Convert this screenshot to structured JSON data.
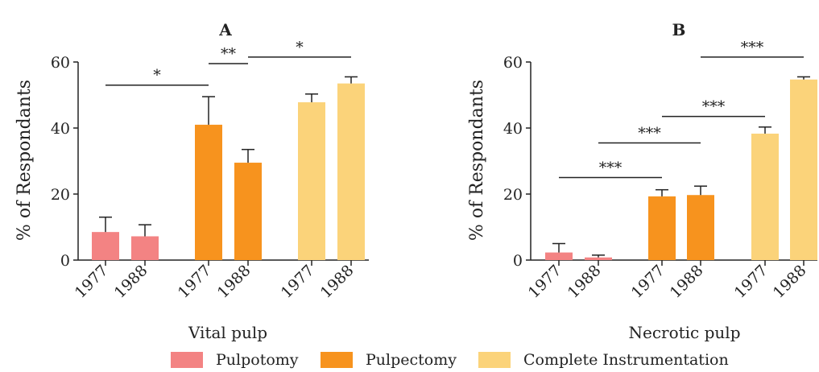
{
  "y_axis_label": "% of Respondants",
  "colors": {
    "Pulpotomy": "#f38383",
    "Pulpectomy": "#f7931e",
    "Complete Instrumentation": "#fbd37a",
    "axis": "#222222"
  },
  "legend": [
    {
      "name": "Pulpotomy",
      "color": "#f38383"
    },
    {
      "name": "Pulpectomy",
      "color": "#f7931e"
    },
    {
      "name": "Complete Instrumentation",
      "color": "#fbd37a"
    }
  ],
  "chart_data": [
    {
      "type": "bar",
      "title": "A",
      "xlabel": "Vital pulp",
      "ylabel": "% of Respondants",
      "ylim": [
        0,
        60
      ],
      "yticks": [
        0,
        20,
        40,
        60
      ],
      "categories": [
        "1977",
        "1988",
        "1977",
        "1988",
        "1977",
        "1988"
      ],
      "groups": [
        "Pulpotomy",
        "Pulpotomy",
        "Pulpectomy",
        "Pulpectomy",
        "Complete Instrumentation",
        "Complete Instrumentation"
      ],
      "values": [
        8.5,
        7.2,
        41,
        29.5,
        47.8,
        53.5
      ],
      "errors": [
        4.5,
        3.5,
        8.5,
        4.0,
        2.5,
        2.0
      ],
      "annotations": [
        {
          "from": 0,
          "to": 2,
          "y": 53,
          "label": "*"
        },
        {
          "from": 2,
          "to": 3,
          "y": 59.5,
          "label": "**"
        },
        {
          "from": 3,
          "to": 5,
          "y": 61.5,
          "label": "*"
        }
      ]
    },
    {
      "type": "bar",
      "title": "B",
      "xlabel": "Necrotic pulp",
      "ylabel": "% of Respondants",
      "ylim": [
        0,
        60
      ],
      "yticks": [
        0,
        20,
        40,
        60
      ],
      "categories": [
        "1977",
        "1988",
        "1977",
        "1988",
        "1977",
        "1988"
      ],
      "groups": [
        "Pulpotomy",
        "Pulpotomy",
        "Pulpectomy",
        "Pulpectomy",
        "Complete Instrumentation",
        "Complete Instrumentation"
      ],
      "values": [
        2.3,
        0.8,
        19.3,
        19.7,
        38.3,
        54.7
      ],
      "errors": [
        2.7,
        0.7,
        2.0,
        2.7,
        2.0,
        0.8
      ],
      "annotations": [
        {
          "from": 0,
          "to": 2,
          "y": 25,
          "label": "***"
        },
        {
          "from": 1,
          "to": 3,
          "y": 35.5,
          "label": "***"
        },
        {
          "from": 2,
          "to": 4,
          "y": 43.5,
          "label": "***"
        },
        {
          "from": 3,
          "to": 5,
          "y": 61.5,
          "label": "***"
        }
      ]
    }
  ]
}
